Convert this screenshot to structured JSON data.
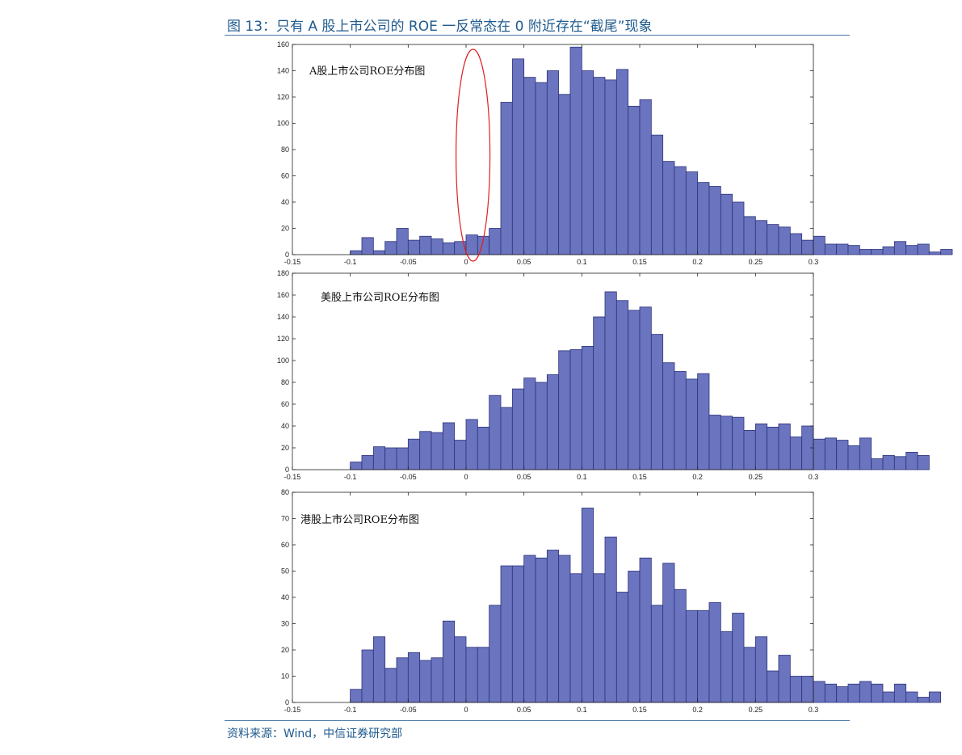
{
  "figure": {
    "title": "图 13：只有 A 股上市公司的 ROE 一反常态在 0 附近存在“截尾”现象",
    "source": "资料来源：Wind，中信证券研究部"
  },
  "colors": {
    "bar_fill": "#6a74bf",
    "bar_edge": "#2d327a",
    "highlight": "#e02020",
    "title_text": "#1f5a8e"
  },
  "chart_data": [
    {
      "type": "bar",
      "label": "A股上市公司ROE分布图",
      "bin_width": 0.01,
      "x_start": -0.1,
      "xlim": [
        -0.15,
        0.3
      ],
      "ylim": [
        0,
        160
      ],
      "x_ticks": [
        -0.15,
        -0.1,
        -0.05,
        0,
        0.05,
        0.1,
        0.15,
        0.2,
        0.25,
        0.3
      ],
      "y_ticks": [
        0,
        20,
        40,
        60,
        80,
        100,
        120,
        140,
        160
      ],
      "values": [
        3,
        13,
        3,
        10,
        20,
        11,
        14,
        12,
        9,
        10,
        15,
        14,
        20,
        116,
        149,
        135,
        131,
        140,
        122,
        158,
        140,
        135,
        133,
        141,
        113,
        118,
        91,
        71,
        67,
        63,
        55,
        52,
        46,
        40,
        29,
        26,
        23,
        21,
        16,
        11,
        14,
        8,
        8,
        7,
        4,
        4,
        6,
        10,
        7,
        8,
        2,
        4
      ],
      "annotation": "highlight ellipse around x≈0"
    },
    {
      "type": "bar",
      "label": "美股上市公司ROE分布图",
      "bin_width": 0.01,
      "x_start": -0.1,
      "xlim": [
        -0.15,
        0.3
      ],
      "ylim": [
        0,
        180
      ],
      "x_ticks": [
        -0.15,
        -0.1,
        -0.05,
        0,
        0.05,
        0.1,
        0.15,
        0.2,
        0.25,
        0.3
      ],
      "y_ticks": [
        0,
        20,
        40,
        60,
        80,
        100,
        120,
        140,
        160,
        180
      ],
      "values": [
        7,
        13,
        21,
        20,
        20,
        28,
        35,
        34,
        43,
        27,
        46,
        39,
        68,
        57,
        74,
        84,
        80,
        87,
        109,
        110,
        113,
        140,
        163,
        155,
        146,
        149,
        124,
        98,
        90,
        83,
        88,
        50,
        49,
        48,
        36,
        42,
        39,
        42,
        30,
        40,
        28,
        29,
        27,
        22,
        29,
        10,
        13,
        12,
        16,
        13
      ]
    },
    {
      "type": "bar",
      "label": "港股上市公司ROE分布图",
      "bin_width": 0.01,
      "x_start": -0.1,
      "xlim": [
        -0.15,
        0.3
      ],
      "ylim": [
        0,
        80
      ],
      "x_ticks": [
        -0.15,
        -0.1,
        -0.05,
        0,
        0.05,
        0.1,
        0.15,
        0.2,
        0.25,
        0.3
      ],
      "y_ticks": [
        0,
        10,
        20,
        30,
        40,
        50,
        60,
        70,
        80
      ],
      "values": [
        5,
        20,
        25,
        13,
        17,
        19,
        16,
        17,
        31,
        25,
        21,
        21,
        37,
        52,
        52,
        56,
        55,
        58,
        56,
        49,
        74,
        49,
        63,
        42,
        50,
        55,
        37,
        53,
        43,
        35,
        35,
        38,
        27,
        34,
        21,
        25,
        12,
        18,
        10,
        10,
        8,
        7,
        6,
        7,
        8,
        7,
        4,
        7,
        4,
        2,
        4
      ]
    }
  ]
}
